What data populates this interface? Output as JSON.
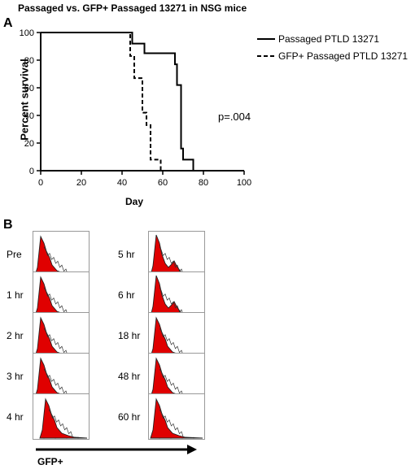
{
  "title": "Passaged vs. GFP+ Passaged 13271 in NSG mice",
  "panel_a_label": "A",
  "panel_b_label": "B",
  "p_value": "p=.004",
  "chart_data": {
    "type": "line",
    "xlabel": "Day",
    "ylabel": "Percent survival",
    "xlim": [
      0,
      100
    ],
    "ylim": [
      0,
      100
    ],
    "xticks": [
      "0",
      "20",
      "40",
      "60",
      "80",
      "100"
    ],
    "yticks": [
      "0",
      "20",
      "40",
      "60",
      "80",
      "100"
    ],
    "legend_position": "top-right",
    "series": [
      {
        "name": "Passaged PTLD 13271",
        "style": "solid",
        "steps": [
          [
            0,
            100
          ],
          [
            45,
            100
          ],
          [
            45,
            92
          ],
          [
            51,
            92
          ],
          [
            51,
            85
          ],
          [
            66,
            85
          ],
          [
            66,
            77
          ],
          [
            67,
            77
          ],
          [
            67,
            62
          ],
          [
            69,
            62
          ],
          [
            69,
            16
          ],
          [
            70,
            16
          ],
          [
            70,
            8
          ],
          [
            75,
            8
          ],
          [
            75,
            0
          ]
        ]
      },
      {
        "name": "GFP+ Passaged PTLD 13271",
        "style": "dashed",
        "steps": [
          [
            0,
            100
          ],
          [
            44,
            100
          ],
          [
            44,
            83
          ],
          [
            46,
            83
          ],
          [
            46,
            67
          ],
          [
            50,
            67
          ],
          [
            50,
            42
          ],
          [
            52,
            42
          ],
          [
            52,
            33
          ],
          [
            54,
            33
          ],
          [
            54,
            8
          ],
          [
            59,
            8
          ],
          [
            59,
            0
          ],
          [
            60,
            0
          ]
        ]
      }
    ]
  },
  "histograms": {
    "axis_label": "GFP+",
    "fill_color": "#e00000",
    "left": [
      {
        "label": "Pre",
        "peak": "narrow"
      },
      {
        "label": "1 hr",
        "peak": "narrow"
      },
      {
        "label": "2 hr",
        "peak": "narrow"
      },
      {
        "label": "3 hr",
        "peak": "narrow"
      },
      {
        "label": "4 hr",
        "peak": "shifted"
      }
    ],
    "right": [
      {
        "label": "5 hr",
        "peak": "bimodal"
      },
      {
        "label": "6 hr",
        "peak": "bimodal"
      },
      {
        "label": "18 hr",
        "peak": "narrow"
      },
      {
        "label": "48 hr",
        "peak": "narrow"
      },
      {
        "label": "60 hr",
        "peak": "narrow"
      }
    ]
  }
}
